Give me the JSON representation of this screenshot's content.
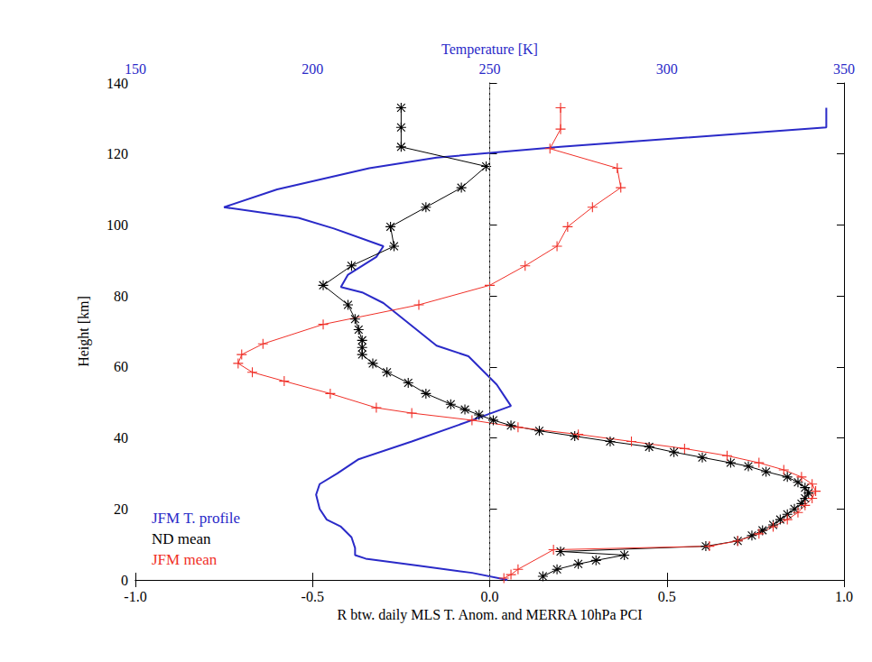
{
  "chart_data": {
    "type": "line",
    "x_label": "R btw. daily MLS T. Anom. and MERRA 10hPa PCI",
    "x2_label": "Temperature [K]",
    "y_label": "Height [km]",
    "xlim": [
      -1,
      1
    ],
    "xticks": [
      {
        "value": -1,
        "label": "-1.0"
      },
      {
        "value": -0.5,
        "label": "-0.5"
      },
      {
        "value": 0,
        "label": "0.0"
      },
      {
        "value": 0.5,
        "label": "0.5"
      },
      {
        "value": 1,
        "label": "1.0"
      }
    ],
    "x2lim": [
      150,
      350
    ],
    "x2ticks": [
      150,
      200,
      250,
      300,
      350
    ],
    "ylim": [
      0,
      140
    ],
    "yticks": [
      0,
      20,
      40,
      60,
      80,
      100,
      120,
      140
    ],
    "grid": false,
    "legend": "lower left",
    "reference_line": {
      "x": 0,
      "line_style": "dashed"
    },
    "series": [
      {
        "name": "JFM T. profile",
        "color": "#2a2ac8",
        "axis": "x2",
        "marker": "none",
        "x": [
          255,
          245,
          230,
          215,
          212,
          212,
          211,
          208,
          204,
          202,
          201,
          202,
          207,
          213,
          228,
          245,
          256,
          254,
          252,
          248,
          244,
          235,
          230,
          225,
          220,
          214,
          208,
          210,
          218,
          220,
          206,
          196,
          175,
          190,
          216,
          235,
          270,
          345,
          345
        ],
        "y": [
          0,
          2,
          4,
          6,
          7,
          9,
          12,
          15,
          17,
          20,
          24,
          27,
          30,
          34,
          39,
          45,
          49,
          52,
          55,
          59,
          63,
          66,
          70,
          74,
          78,
          81,
          82.5,
          86,
          91,
          94,
          99,
          102,
          105,
          110,
          116,
          119,
          122,
          127.5,
          133
        ]
      },
      {
        "name": "ND mean",
        "color": "#000000",
        "marker": "asterisk",
        "x": [
          0.15,
          0.19,
          0.25,
          0.3,
          0.38,
          0.2,
          0.61,
          0.7,
          0.74,
          0.77,
          0.8,
          0.82,
          0.84,
          0.86,
          0.88,
          0.89,
          0.9,
          0.89,
          0.87,
          0.84,
          0.78,
          0.73,
          0.68,
          0.6,
          0.52,
          0.45,
          0.34,
          0.24,
          0.14,
          0.06,
          0.01,
          -0.03,
          -0.07,
          -0.11,
          -0.18,
          -0.23,
          -0.29,
          -0.33,
          -0.36,
          -0.36,
          -0.36,
          -0.37,
          -0.38,
          -0.4,
          -0.47,
          -0.39,
          -0.27,
          -0.28,
          -0.18,
          -0.08,
          -0.01,
          -0.25,
          -0.25,
          -0.25
        ],
        "y": [
          1,
          3,
          4.5,
          5.5,
          7,
          8,
          9.5,
          11,
          12.5,
          14,
          15.5,
          17,
          18.5,
          20,
          21.5,
          23,
          24.5,
          26,
          27.5,
          29,
          30.5,
          32,
          33,
          34.5,
          36,
          37.5,
          39,
          40.5,
          42,
          43.5,
          45,
          46.5,
          48,
          49.5,
          52.5,
          55.5,
          58.5,
          61,
          63.5,
          65.5,
          67.5,
          70.5,
          73.5,
          77.5,
          83,
          88.5,
          94,
          99.5,
          105,
          110.5,
          116.5,
          122,
          127.5,
          133
        ]
      },
      {
        "name": "JFM mean",
        "color": "#f03028",
        "marker": "plus",
        "x": [
          0.04,
          0.06,
          0.08,
          0.18,
          0.62,
          0.7,
          0.76,
          0.8,
          0.84,
          0.87,
          0.89,
          0.91,
          0.92,
          0.91,
          0.88,
          0.83,
          0.76,
          0.67,
          0.55,
          0.4,
          0.25,
          0.08,
          -0.05,
          -0.22,
          -0.32,
          -0.45,
          -0.58,
          -0.67,
          -0.71,
          -0.7,
          -0.64,
          -0.47,
          -0.2,
          0.0,
          0.1,
          0.19,
          0.22,
          0.29,
          0.37,
          0.36,
          0.17,
          0.2,
          0.2
        ],
        "y": [
          0.5,
          1.5,
          3,
          8.5,
          9.5,
          11,
          13,
          15,
          17,
          19,
          21,
          23,
          25,
          27,
          29,
          31,
          33,
          35,
          37,
          39,
          41,
          43,
          45,
          47,
          48.5,
          52.5,
          56,
          58.5,
          61,
          63.5,
          66.5,
          72,
          77.5,
          83,
          88.5,
          94,
          99.5,
          105,
          110.5,
          116,
          121.5,
          127,
          133
        ]
      }
    ]
  }
}
